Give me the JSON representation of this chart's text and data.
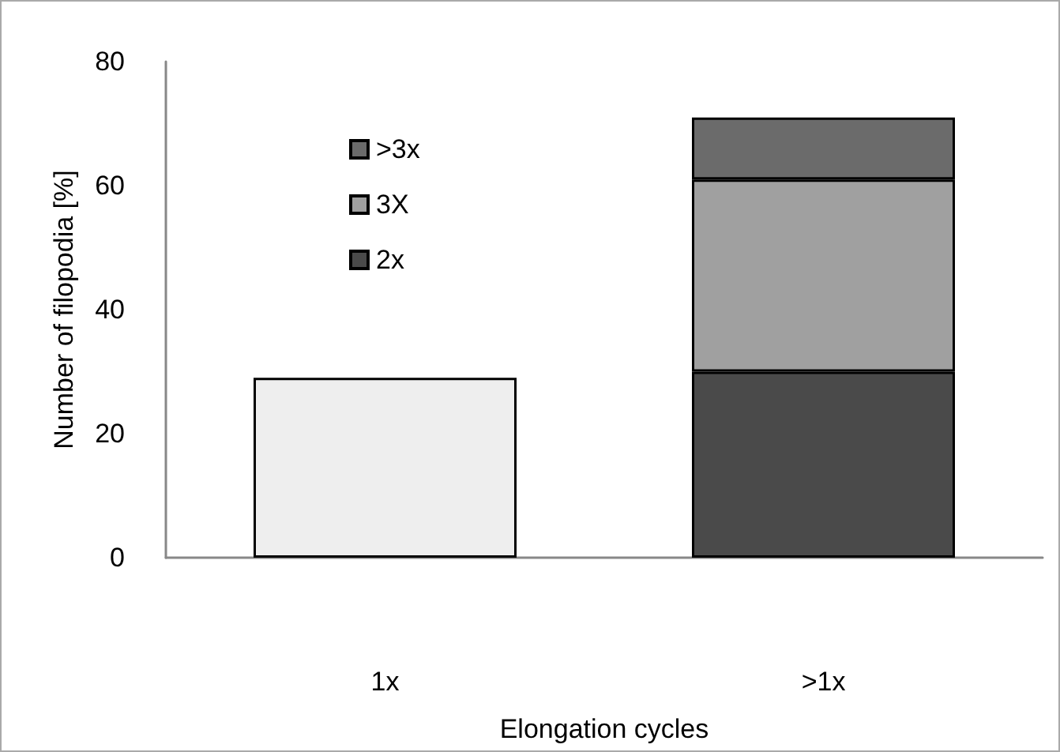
{
  "chart_data": {
    "type": "bar",
    "stacked": true,
    "xlabel": "Elongation cycles",
    "ylabel": "Number of filopodia [%]",
    "categories": [
      "1x",
      ">1x"
    ],
    "series": [
      {
        "color": "#eeeeee",
        "values": [
          29,
          null
        ]
      },
      {
        "name": "2x",
        "color": "#4a4a4a",
        "values": [
          null,
          30
        ]
      },
      {
        "name": "3X",
        "color": "#a0a0a0",
        "values": [
          null,
          31
        ]
      },
      {
        "name": ">3x",
        "color": "#6b6b6b",
        "values": [
          null,
          10
        ]
      }
    ],
    "ylim": [
      0,
      80
    ],
    "yticks": [
      0,
      20,
      40,
      60,
      80
    ],
    "grid": false,
    "legend": "top left"
  }
}
